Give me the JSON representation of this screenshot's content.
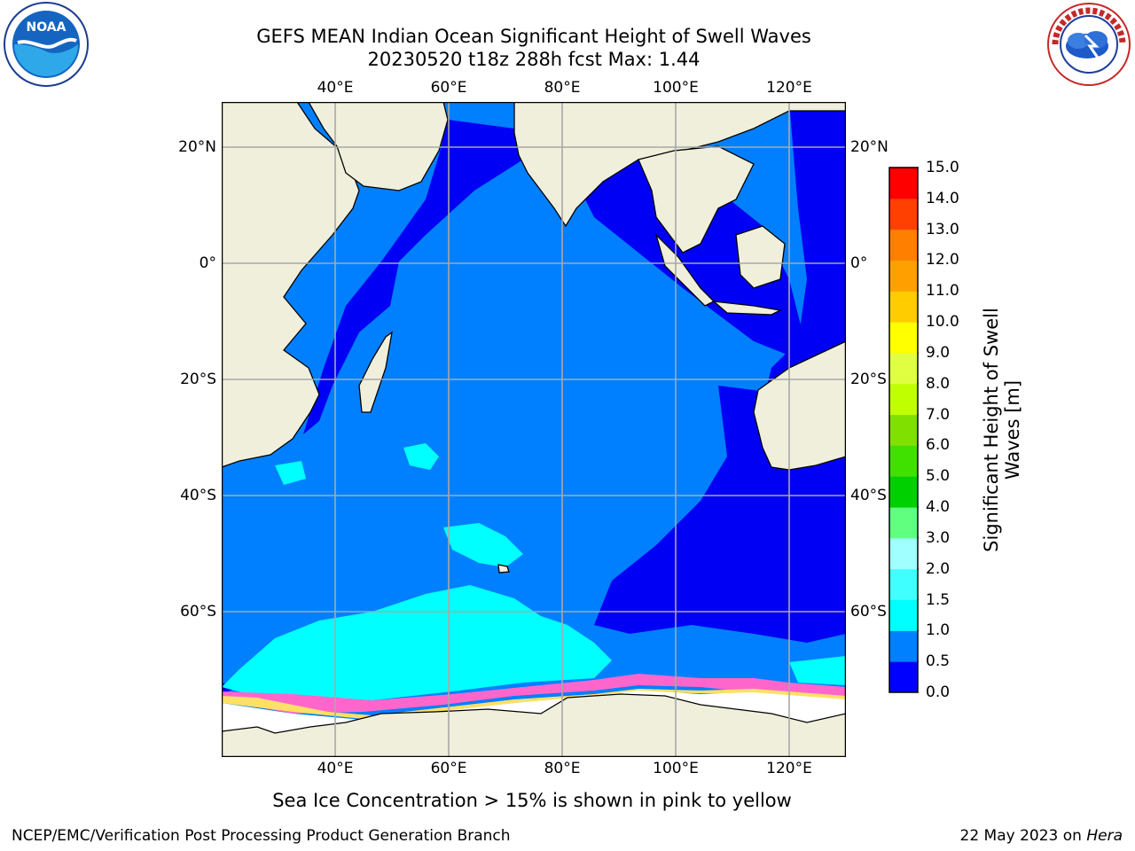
{
  "title": {
    "line1": "GEFS MEAN Indian Ocean Significant Height of Swell Waves",
    "line2": "20230520 t18z 288h fcst   Max: 1.44"
  },
  "map": {
    "lon_labels": [
      "40°E",
      "60°E",
      "80°E",
      "100°E",
      "120°E"
    ],
    "lat_labels": [
      "20°N",
      "0°",
      "20°S",
      "40°S",
      "60°S"
    ],
    "lon_range": [
      20,
      130
    ],
    "lat_range": [
      -85,
      28
    ],
    "colors": {
      "land": "#efefdc",
      "ocean_0_0_5": "#0000f5",
      "ocean_0_5_1": "#0080ff",
      "ocean_1_1_5": "#00ffff",
      "ice": "#ff66cc"
    }
  },
  "colorbar": {
    "label": "Significant Height of Swell Waves [m]",
    "ticks": [
      "0.0",
      "0.5",
      "1.0",
      "1.5",
      "2.0",
      "3.0",
      "4.0",
      "5.0",
      "6.0",
      "7.0",
      "8.0",
      "9.0",
      "10.0",
      "11.0",
      "12.0",
      "13.0",
      "14.0",
      "15.0"
    ],
    "colors": [
      "#0000ff",
      "#0080ff",
      "#00ffff",
      "#40ffff",
      "#a0ffff",
      "#60ff80",
      "#00d000",
      "#40e000",
      "#80e000",
      "#c0ff00",
      "#e0ff40",
      "#ffff00",
      "#ffcc00",
      "#ffa000",
      "#ff8000",
      "#ff4000",
      "#ff0000"
    ]
  },
  "note": "Sea Ice Concentration > 15% is shown in pink to yellow",
  "footer": {
    "left": "NCEP/EMC/Verification Post Processing Product Generation Branch",
    "date": "22 May 2023 on ",
    "machine": "Hera"
  },
  "logos": {
    "noaa_text": "NOAA",
    "nws_ring": "NATIONAL WEATHER SERVICE"
  }
}
